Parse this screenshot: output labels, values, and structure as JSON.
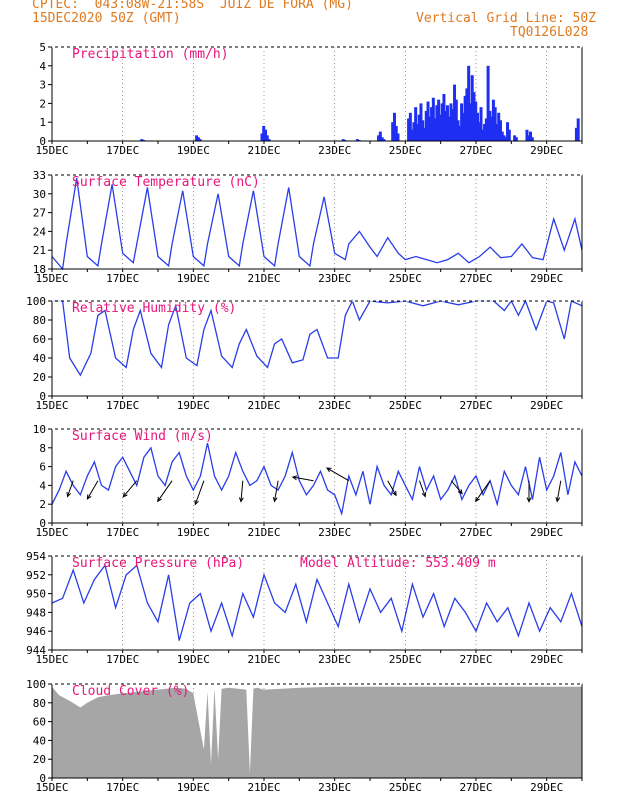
{
  "header": {
    "line1": "CPTEC:  043:08W-21:58S  JUIZ DE FORA (MG)",
    "line2": "15DEC2020 50Z (GMT)",
    "grid_note": "Vertical Grid Line: 50Z",
    "code": "TQ0126L028"
  },
  "colors": {
    "header": "#e07a1f",
    "title": "#e8157a",
    "series": "#2a3ee8",
    "bars": "#1f2ff2",
    "cloud": "#a6a6a6",
    "wind_arrow": "#000000"
  },
  "axis_ticks_x": [
    "15DEC",
    "17DEC",
    "19DEC",
    "21DEC",
    "23DEC",
    "25DEC",
    "27DEC",
    "29DEC"
  ],
  "chart_data": [
    {
      "id": "precip",
      "type": "bar",
      "title": "Precipitation (mm/h)",
      "ylim": [
        0,
        5
      ],
      "yticks": [
        0,
        1,
        2,
        3,
        4,
        5
      ],
      "x_days": [
        0,
        15
      ],
      "series": [
        {
          "x": [
            2.5,
            2.55,
            4.05,
            4.1,
            4.15,
            5.9,
            5.95,
            6,
            6.05,
            6.1,
            8.2,
            8.25,
            8.6,
            8.65,
            9.2,
            9.25,
            9.3,
            9.35,
            9.6,
            9.65,
            9.7,
            9.75,
            10.05,
            10.1,
            10.15,
            10.2,
            10.25,
            10.3,
            10.35,
            10.4,
            10.45,
            10.5,
            10.55,
            10.6,
            10.65,
            10.7,
            10.75,
            10.8,
            10.85,
            10.9,
            10.95,
            11,
            11.05,
            11.1,
            11.15,
            11.2,
            11.25,
            11.3,
            11.35,
            11.4,
            11.45,
            11.5,
            11.55,
            11.6,
            11.65,
            11.7,
            11.75,
            11.8,
            11.85,
            11.9,
            11.95,
            12,
            12.05,
            12.1,
            12.15,
            12.2,
            12.25,
            12.3,
            12.35,
            12.4,
            12.45,
            12.5,
            12.55,
            12.6,
            12.65,
            12.7,
            12.75,
            12.8,
            12.85,
            12.9,
            13.05,
            13.1,
            13.4,
            13.45,
            13.5,
            13.55,
            14.8,
            14.85
          ],
          "values": [
            0.1,
            0.05,
            0.3,
            0.2,
            0.1,
            0.4,
            0.8,
            0.6,
            0.3,
            0.1,
            0.1,
            0.05,
            0.1,
            0.05,
            0.3,
            0.5,
            0.2,
            0.1,
            1.0,
            1.5,
            0.8,
            0.4,
            1.2,
            1.5,
            0.6,
            1.0,
            1.8,
            0.9,
            1.4,
            2.0,
            1.1,
            0.7,
            1.6,
            2.1,
            1.3,
            1.8,
            2.3,
            1.2,
            1.9,
            2.2,
            1.4,
            2.0,
            2.5,
            1.6,
            1.9,
            1.3,
            2.0,
            1.7,
            3.0,
            2.2,
            1.1,
            0.8,
            2.0,
            1.5,
            2.4,
            2.8,
            4.0,
            2.0,
            3.5,
            2.6,
            2.1,
            1.5,
            1.0,
            1.8,
            0.6,
            0.9,
            1.2,
            4.0,
            1.6,
            1.3,
            2.2,
            1.8,
            0.9,
            1.5,
            1.1,
            0.5,
            0.3,
            0.2,
            1.0,
            0.6,
            0.3,
            0.2,
            0.6,
            0.3,
            0.5,
            0.2,
            0.7,
            1.2
          ]
        }
      ]
    },
    {
      "id": "temp",
      "type": "line",
      "title": "Surface Temperature (nC)",
      "ylim": [
        18,
        33
      ],
      "yticks": [
        18,
        21,
        24,
        27,
        30,
        33
      ],
      "x_days": [
        0,
        15
      ],
      "series": [
        {
          "x": [
            0,
            0.3,
            0.4,
            0.7,
            1.0,
            1.3,
            1.4,
            1.7,
            2.0,
            2.3,
            2.4,
            2.7,
            3.0,
            3.3,
            3.4,
            3.7,
            4.0,
            4.3,
            4.4,
            4.7,
            5.0,
            5.3,
            5.4,
            5.7,
            6.0,
            6.3,
            6.4,
            6.7,
            7.0,
            7.3,
            7.4,
            7.7,
            8.0,
            8.3,
            8.4,
            8.7,
            9.0,
            9.2,
            9.5,
            9.8,
            10.0,
            10.3,
            10.6,
            10.9,
            11.2,
            11.5,
            11.8,
            12.1,
            12.4,
            12.7,
            13.0,
            13.3,
            13.6,
            13.9,
            14.2,
            14.5,
            14.8,
            15.0
          ],
          "values": [
            20,
            18,
            22,
            32.5,
            20,
            18.5,
            22,
            31.5,
            20.5,
            19,
            22,
            31,
            20,
            18.5,
            22,
            30.5,
            20,
            18.5,
            22,
            30,
            20,
            18.5,
            22,
            30.5,
            20,
            18.5,
            22,
            31,
            20,
            18.5,
            22,
            29.5,
            20.5,
            19.5,
            22,
            24,
            21.5,
            20,
            23,
            20.5,
            19.5,
            20,
            19.5,
            19,
            19.5,
            20.5,
            19,
            20,
            21.5,
            19.8,
            20,
            22,
            19.8,
            19.5,
            26,
            21,
            26,
            21
          ]
        }
      ]
    },
    {
      "id": "rh",
      "type": "line",
      "title": "Relative Humidity (%)",
      "ylim": [
        0,
        100
      ],
      "yticks": [
        0,
        20,
        40,
        60,
        80,
        100
      ],
      "x_days": [
        0,
        15
      ],
      "series": [
        {
          "x": [
            0,
            0.3,
            0.5,
            0.8,
            1.1,
            1.3,
            1.5,
            1.8,
            2.1,
            2.3,
            2.5,
            2.8,
            3.1,
            3.3,
            3.5,
            3.8,
            4.1,
            4.3,
            4.5,
            4.8,
            5.1,
            5.3,
            5.5,
            5.8,
            6.1,
            6.3,
            6.5,
            6.8,
            7.1,
            7.3,
            7.5,
            7.8,
            8.1,
            8.3,
            8.5,
            8.7,
            9.0,
            9.5,
            10.0,
            10.5,
            11.0,
            11.5,
            12.0,
            12.5,
            12.8,
            13.0,
            13.2,
            13.4,
            13.7,
            14.0,
            14.2,
            14.5,
            14.7,
            15.0
          ],
          "values": [
            100,
            100,
            40,
            22,
            45,
            85,
            90,
            40,
            30,
            70,
            90,
            45,
            30,
            75,
            95,
            40,
            32,
            70,
            90,
            42,
            30,
            55,
            70,
            42,
            30,
            55,
            60,
            35,
            38,
            65,
            70,
            40,
            40,
            85,
            100,
            80,
            100,
            98,
            100,
            95,
            100,
            96,
            100,
            100,
            90,
            100,
            85,
            100,
            70,
            100,
            98,
            60,
            100,
            95
          ]
        }
      ]
    },
    {
      "id": "wind",
      "type": "line",
      "title": "Surface Wind (m/s)",
      "ylim": [
        0,
        10
      ],
      "yticks": [
        0,
        2,
        4,
        6,
        8,
        10
      ],
      "x_days": [
        0,
        15
      ],
      "series": [
        {
          "x": [
            0,
            0.2,
            0.4,
            0.6,
            0.8,
            1.0,
            1.2,
            1.4,
            1.6,
            1.8,
            2.0,
            2.2,
            2.4,
            2.6,
            2.8,
            3.0,
            3.2,
            3.4,
            3.6,
            3.8,
            4.0,
            4.2,
            4.4,
            4.6,
            4.8,
            5.0,
            5.2,
            5.4,
            5.6,
            5.8,
            6.0,
            6.2,
            6.4,
            6.6,
            6.8,
            7.0,
            7.2,
            7.4,
            7.6,
            7.8,
            8.0,
            8.2,
            8.4,
            8.6,
            8.8,
            9.0,
            9.2,
            9.4,
            9.6,
            9.8,
            10.0,
            10.2,
            10.4,
            10.6,
            10.8,
            11.0,
            11.2,
            11.4,
            11.6,
            11.8,
            12.0,
            12.2,
            12.4,
            12.6,
            12.8,
            13.0,
            13.2,
            13.4,
            13.6,
            13.8,
            14.0,
            14.2,
            14.4,
            14.6,
            14.8,
            15.0
          ],
          "values": [
            2,
            3.5,
            5.5,
            4,
            3,
            5,
            6.5,
            4,
            3.5,
            6,
            7,
            5.5,
            4,
            7,
            8,
            5,
            4,
            6.5,
            7.5,
            5,
            3.5,
            5,
            8.5,
            5,
            3.5,
            5,
            7.5,
            5.5,
            4,
            4.5,
            6,
            4,
            3.5,
            5,
            7.5,
            4.5,
            3,
            4,
            5.5,
            3.5,
            3,
            1,
            5,
            3,
            5.5,
            2,
            6,
            4,
            3,
            5.5,
            4,
            2.5,
            6,
            3.5,
            5,
            2.5,
            3.5,
            5,
            2.5,
            4,
            5,
            3,
            4.5,
            2,
            5.5,
            4,
            3,
            6,
            2.5,
            7,
            3.5,
            5,
            7.5,
            3,
            6.5,
            5
          ]
        }
      ],
      "arrows": {
        "x": [
          0.6,
          1.3,
          2.4,
          3.4,
          4.3,
          5.4,
          6.4,
          7.4,
          8.4,
          9.5,
          10.4,
          11.3,
          12.4,
          13.5,
          14.4
        ],
        "dir_deg": [
          200,
          210,
          220,
          215,
          200,
          185,
          190,
          280,
          300,
          150,
          160,
          140,
          215,
          180,
          190
        ],
        "speed": [
          4,
          5,
          5,
          6,
          6,
          5,
          5,
          5,
          6,
          4,
          4,
          4,
          6,
          5,
          5
        ]
      }
    },
    {
      "id": "pres",
      "type": "line",
      "title": "Surface Pressure (hPa)",
      "model_altitude": "Model Altitude: 553.409 m",
      "ylim": [
        944,
        954
      ],
      "yticks": [
        944,
        946,
        948,
        950,
        952,
        954
      ],
      "x_days": [
        0,
        15
      ],
      "series": [
        {
          "x": [
            0,
            0.3,
            0.6,
            0.9,
            1.2,
            1.5,
            1.8,
            2.1,
            2.4,
            2.7,
            3.0,
            3.3,
            3.6,
            3.9,
            4.2,
            4.5,
            4.8,
            5.1,
            5.4,
            5.7,
            6.0,
            6.3,
            6.6,
            6.9,
            7.2,
            7.5,
            7.8,
            8.1,
            8.4,
            8.7,
            9.0,
            9.3,
            9.6,
            9.9,
            10.2,
            10.5,
            10.8,
            11.1,
            11.4,
            11.7,
            12.0,
            12.3,
            12.6,
            12.9,
            13.2,
            13.5,
            13.8,
            14.1,
            14.4,
            14.7,
            15.0
          ],
          "values": [
            949,
            949.5,
            952.5,
            949,
            951.5,
            953,
            948.5,
            952,
            953,
            949,
            947,
            952,
            945,
            949,
            950,
            946,
            949,
            945.5,
            950,
            947.5,
            952,
            949,
            948,
            951,
            947,
            951.5,
            949,
            946.5,
            951,
            947,
            950.5,
            948,
            949.5,
            946,
            951,
            947.5,
            950,
            946.5,
            949.5,
            948,
            946,
            949,
            947,
            948.5,
            945.5,
            949,
            946,
            948.5,
            947,
            950,
            946.5
          ]
        }
      ]
    },
    {
      "id": "cloud",
      "type": "area",
      "title": "Cloud Cover (%)",
      "ylim": [
        0,
        100
      ],
      "yticks": [
        0,
        20,
        40,
        60,
        80,
        100
      ],
      "x_days": [
        0,
        15
      ],
      "series": [
        {
          "x": [
            0,
            0.2,
            0.5,
            0.8,
            1.0,
            1.3,
            1.6,
            2.0,
            2.5,
            3.0,
            3.5,
            3.8,
            4.0,
            4.3,
            4.4,
            4.5,
            4.6,
            4.7,
            4.8,
            5.0,
            5.5,
            5.6,
            5.7,
            5.8,
            6.0,
            6.5,
            7.0,
            8.0,
            9.0,
            10.0,
            11.0,
            12.0,
            13.0,
            14.0,
            15.0
          ],
          "values": [
            97,
            88,
            82,
            75,
            80,
            86,
            88,
            90,
            92,
            94,
            96,
            95,
            90,
            30,
            92,
            15,
            96,
            20,
            95,
            96,
            94,
            5,
            95,
            96,
            94,
            95,
            96,
            97,
            97,
            97,
            97,
            97,
            97,
            97,
            97
          ]
        }
      ]
    }
  ]
}
